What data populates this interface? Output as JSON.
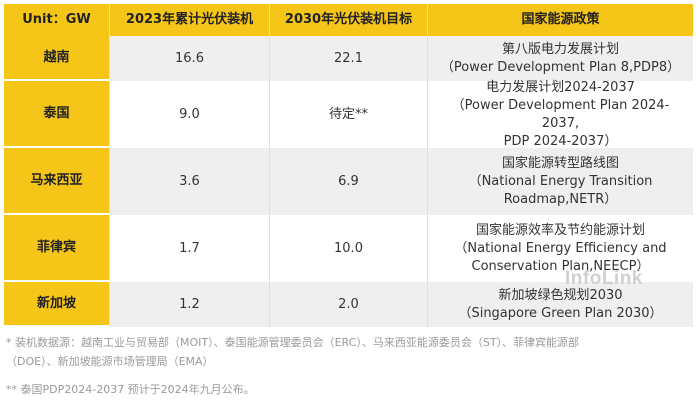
{
  "table": {
    "headers": [
      "Unit：GW",
      "2023年累计光伏装机",
      "2030年光伏装机目标",
      "国家能源政策"
    ],
    "rows": [
      {
        "country": "越南",
        "installed_2023": "16.6",
        "target_2030": "22.1",
        "policy": [
          "第八版电力发展计划",
          "（Power Development Plan 8,PDP8）"
        ]
      },
      {
        "country": "泰国",
        "installed_2023": "9.0",
        "target_2030": "待定**",
        "policy": [
          "电力发展计划2024-2037",
          "（Power Development Plan 2024-2037,",
          "PDP 2024-2037）"
        ]
      },
      {
        "country": "马来西亚",
        "installed_2023": "3.6",
        "target_2030": "6.9",
        "policy": [
          "国家能源转型路线图",
          "（National Energy Transition",
          "Roadmap,NETR）"
        ]
      },
      {
        "country": "菲律宾",
        "installed_2023": "1.7",
        "target_2030": "10.0",
        "policy": [
          "国家能源效率及节约能源计划",
          "（National Energy Efficiency and",
          "Conservation Plan,NEECP）"
        ]
      },
      {
        "country": "新加坡",
        "installed_2023": "1.2",
        "target_2030": "2.0",
        "policy": [
          "新加坡绿色规划2030",
          "（Singapore Green Plan 2030）"
        ]
      }
    ]
  },
  "watermark": "InfoLink",
  "notes": {
    "note1_line1": "* 装机数据源：越南工业与贸易部（MOIT）、泰国能源管理委员会（ERC）、马来西亚能源委员会（ST）、菲律宾能源部",
    "note1_line2": "（DOE）、新加坡能源市场管理局（EMA）",
    "note2": "** 泰国PDP2024-2037 预计于2024年九月公布。"
  }
}
